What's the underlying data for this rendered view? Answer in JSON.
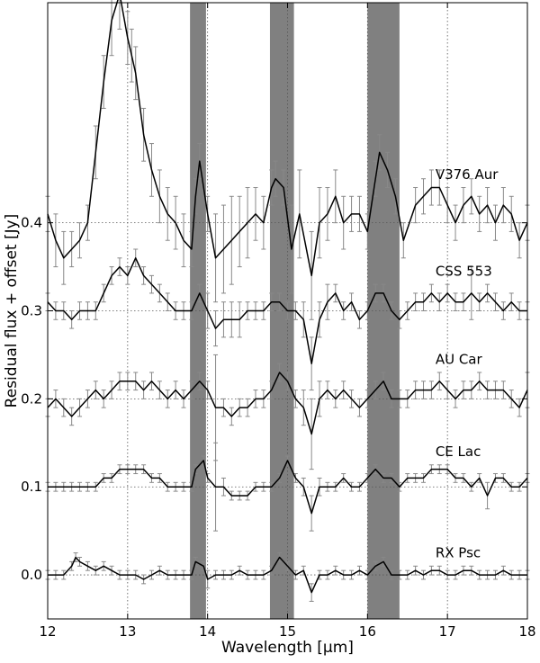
{
  "chart_data": {
    "type": "line",
    "title": "",
    "xlabel": "Wavelength [μm]",
    "ylabel": "Residual flux + offset [Jy]",
    "xlim": [
      12,
      18
    ],
    "ylim": [
      -0.05,
      0.65
    ],
    "grid": "dotted",
    "x_ticks": [
      12,
      13,
      14,
      15,
      16,
      17,
      18
    ],
    "x_tick_labels": [
      "12",
      "13",
      "14",
      "15",
      "16",
      "17",
      "18"
    ],
    "y_ticks": [
      0.0,
      0.1,
      0.2,
      0.3,
      0.4
    ],
    "y_tick_labels": [
      "0.0",
      "0.1",
      "0.2",
      "0.3",
      "0.4"
    ],
    "shaded_bands": [
      [
        13.78,
        13.98
      ],
      [
        14.78,
        15.08
      ],
      [
        16.0,
        16.4
      ]
    ],
    "colors": {
      "line": "#000000",
      "errorbar": "#888888",
      "band": "#808080",
      "grid": "#555555"
    },
    "series": [
      {
        "name": "V376 Aur",
        "label_at": [
          16.85,
          0.455
        ],
        "x": [
          12.0,
          12.1,
          12.2,
          12.3,
          12.4,
          12.5,
          12.6,
          12.7,
          12.8,
          12.9,
          13.0,
          13.05,
          13.1,
          13.2,
          13.3,
          13.4,
          13.5,
          13.6,
          13.7,
          13.8,
          13.85,
          13.9,
          14.0,
          14.1,
          14.2,
          14.3,
          14.4,
          14.5,
          14.6,
          14.7,
          14.8,
          14.85,
          14.95,
          15.05,
          15.15,
          15.3,
          15.4,
          15.5,
          15.6,
          15.7,
          15.8,
          15.9,
          16.0,
          16.1,
          16.15,
          16.25,
          16.35,
          16.45,
          16.6,
          16.7,
          16.8,
          16.9,
          17.0,
          17.1,
          17.2,
          17.3,
          17.4,
          17.5,
          17.6,
          17.7,
          17.8,
          17.9,
          18.0
        ],
        "y": [
          0.41,
          0.38,
          0.36,
          0.37,
          0.38,
          0.4,
          0.48,
          0.56,
          0.63,
          0.66,
          0.61,
          0.59,
          0.57,
          0.5,
          0.46,
          0.43,
          0.41,
          0.4,
          0.38,
          0.37,
          0.43,
          0.47,
          0.41,
          0.36,
          0.37,
          0.38,
          0.39,
          0.4,
          0.41,
          0.4,
          0.44,
          0.45,
          0.44,
          0.37,
          0.41,
          0.34,
          0.4,
          0.41,
          0.43,
          0.4,
          0.41,
          0.41,
          0.39,
          0.45,
          0.48,
          0.46,
          0.43,
          0.38,
          0.42,
          0.43,
          0.44,
          0.44,
          0.42,
          0.4,
          0.42,
          0.43,
          0.41,
          0.42,
          0.4,
          0.42,
          0.41,
          0.38,
          0.4
        ],
        "err": [
          0.02,
          0.03,
          0.03,
          0.02,
          0.02,
          0.02,
          0.03,
          0.03,
          0.04,
          0.04,
          0.03,
          0.03,
          0.03,
          0.03,
          0.03,
          0.03,
          0.03,
          0.03,
          0.03,
          0.02,
          0.02,
          0.02,
          0.02,
          0.05,
          0.05,
          0.05,
          0.04,
          0.04,
          0.03,
          0.03,
          0.02,
          0.02,
          0.02,
          0.05,
          0.05,
          0.05,
          0.04,
          0.03,
          0.03,
          0.03,
          0.02,
          0.02,
          0.02,
          0.02,
          0.02,
          0.02,
          0.02,
          0.02,
          0.02,
          0.02,
          0.02,
          0.02,
          0.02,
          0.02,
          0.02,
          0.02,
          0.02,
          0.02,
          0.02,
          0.02,
          0.02,
          0.02,
          0.02
        ]
      },
      {
        "name": "CSS 553",
        "label_at": [
          16.85,
          0.345
        ],
        "x": [
          12.0,
          12.1,
          12.2,
          12.3,
          12.4,
          12.5,
          12.6,
          12.7,
          12.8,
          12.9,
          13.0,
          13.1,
          13.2,
          13.3,
          13.4,
          13.5,
          13.6,
          13.7,
          13.8,
          13.9,
          14.0,
          14.1,
          14.2,
          14.3,
          14.4,
          14.5,
          14.6,
          14.7,
          14.8,
          14.9,
          15.0,
          15.1,
          15.2,
          15.3,
          15.4,
          15.5,
          15.6,
          15.7,
          15.8,
          15.9,
          16.0,
          16.1,
          16.2,
          16.3,
          16.4,
          16.5,
          16.6,
          16.7,
          16.8,
          16.9,
          17.0,
          17.1,
          17.2,
          17.3,
          17.4,
          17.5,
          17.6,
          17.7,
          17.8,
          17.9,
          18.0
        ],
        "y": [
          0.31,
          0.3,
          0.3,
          0.29,
          0.3,
          0.3,
          0.3,
          0.32,
          0.34,
          0.35,
          0.34,
          0.36,
          0.34,
          0.33,
          0.32,
          0.31,
          0.3,
          0.3,
          0.3,
          0.32,
          0.3,
          0.28,
          0.29,
          0.29,
          0.29,
          0.3,
          0.3,
          0.3,
          0.31,
          0.31,
          0.3,
          0.3,
          0.29,
          0.24,
          0.29,
          0.31,
          0.32,
          0.3,
          0.31,
          0.29,
          0.3,
          0.32,
          0.32,
          0.3,
          0.29,
          0.3,
          0.31,
          0.31,
          0.32,
          0.31,
          0.32,
          0.31,
          0.31,
          0.32,
          0.31,
          0.32,
          0.31,
          0.3,
          0.31,
          0.3,
          0.3
        ],
        "err": [
          0.01,
          0.01,
          0.01,
          0.01,
          0.01,
          0.01,
          0.01,
          0.01,
          0.01,
          0.01,
          0.01,
          0.01,
          0.01,
          0.01,
          0.01,
          0.01,
          0.01,
          0.01,
          0.01,
          0.01,
          0.02,
          0.02,
          0.02,
          0.02,
          0.02,
          0.01,
          0.01,
          0.01,
          0.01,
          0.01,
          0.01,
          0.01,
          0.02,
          0.03,
          0.02,
          0.02,
          0.01,
          0.01,
          0.01,
          0.01,
          0.01,
          0.01,
          0.01,
          0.01,
          0.01,
          0.01,
          0.01,
          0.01,
          0.01,
          0.01,
          0.01,
          0.01,
          0.01,
          0.03,
          0.01,
          0.01,
          0.01,
          0.01,
          0.01,
          0.01,
          0.01
        ]
      },
      {
        "name": "AU Car",
        "label_at": [
          16.85,
          0.245
        ],
        "x": [
          12.0,
          12.1,
          12.2,
          12.3,
          12.4,
          12.5,
          12.6,
          12.7,
          12.8,
          12.9,
          13.0,
          13.1,
          13.2,
          13.3,
          13.4,
          13.5,
          13.6,
          13.7,
          13.8,
          13.9,
          14.0,
          14.1,
          14.2,
          14.3,
          14.4,
          14.5,
          14.6,
          14.7,
          14.8,
          14.9,
          15.0,
          15.1,
          15.2,
          15.3,
          15.4,
          15.5,
          15.6,
          15.7,
          15.8,
          15.9,
          16.0,
          16.1,
          16.2,
          16.3,
          16.4,
          16.5,
          16.6,
          16.7,
          16.8,
          16.9,
          17.0,
          17.1,
          17.2,
          17.3,
          17.4,
          17.5,
          17.6,
          17.7,
          17.8,
          17.9,
          18.0
        ],
        "y": [
          0.19,
          0.2,
          0.19,
          0.18,
          0.19,
          0.2,
          0.21,
          0.2,
          0.21,
          0.22,
          0.22,
          0.22,
          0.21,
          0.22,
          0.21,
          0.2,
          0.21,
          0.2,
          0.21,
          0.22,
          0.21,
          0.19,
          0.19,
          0.18,
          0.19,
          0.19,
          0.2,
          0.2,
          0.21,
          0.23,
          0.22,
          0.2,
          0.19,
          0.16,
          0.2,
          0.21,
          0.2,
          0.21,
          0.2,
          0.19,
          0.2,
          0.21,
          0.22,
          0.2,
          0.2,
          0.2,
          0.21,
          0.21,
          0.21,
          0.22,
          0.21,
          0.2,
          0.21,
          0.21,
          0.22,
          0.21,
          0.21,
          0.21,
          0.2,
          0.19,
          0.21
        ],
        "err": [
          0.01,
          0.01,
          0.01,
          0.01,
          0.01,
          0.01,
          0.01,
          0.01,
          0.01,
          0.01,
          0.01,
          0.01,
          0.01,
          0.01,
          0.01,
          0.01,
          0.01,
          0.01,
          0.01,
          0.01,
          0.01,
          0.06,
          0.01,
          0.01,
          0.01,
          0.01,
          0.01,
          0.01,
          0.01,
          0.01,
          0.01,
          0.01,
          0.02,
          0.04,
          0.02,
          0.01,
          0.01,
          0.01,
          0.01,
          0.01,
          0.01,
          0.01,
          0.01,
          0.01,
          0.01,
          0.01,
          0.01,
          0.01,
          0.01,
          0.01,
          0.01,
          0.01,
          0.01,
          0.01,
          0.01,
          0.01,
          0.01,
          0.01,
          0.01,
          0.01,
          0.02
        ]
      },
      {
        "name": "CE Lac",
        "label_at": [
          16.85,
          0.14
        ],
        "x": [
          12.0,
          12.1,
          12.2,
          12.3,
          12.4,
          12.5,
          12.6,
          12.7,
          12.8,
          12.9,
          13.0,
          13.1,
          13.2,
          13.3,
          13.4,
          13.5,
          13.6,
          13.7,
          13.8,
          13.85,
          13.95,
          14.0,
          14.1,
          14.2,
          14.3,
          14.4,
          14.5,
          14.6,
          14.7,
          14.8,
          14.9,
          15.0,
          15.1,
          15.2,
          15.3,
          15.4,
          15.5,
          15.6,
          15.7,
          15.8,
          15.9,
          16.0,
          16.1,
          16.2,
          16.3,
          16.4,
          16.5,
          16.6,
          16.7,
          16.8,
          16.9,
          17.0,
          17.1,
          17.2,
          17.3,
          17.4,
          17.5,
          17.6,
          17.7,
          17.8,
          17.9,
          18.0
        ],
        "y": [
          0.1,
          0.1,
          0.1,
          0.1,
          0.1,
          0.1,
          0.1,
          0.11,
          0.11,
          0.12,
          0.12,
          0.12,
          0.12,
          0.11,
          0.11,
          0.1,
          0.1,
          0.1,
          0.1,
          0.12,
          0.13,
          0.11,
          0.1,
          0.1,
          0.09,
          0.09,
          0.09,
          0.1,
          0.1,
          0.1,
          0.11,
          0.13,
          0.11,
          0.1,
          0.07,
          0.1,
          0.1,
          0.1,
          0.11,
          0.1,
          0.1,
          0.11,
          0.12,
          0.11,
          0.11,
          0.1,
          0.11,
          0.11,
          0.11,
          0.12,
          0.12,
          0.12,
          0.11,
          0.11,
          0.1,
          0.11,
          0.09,
          0.11,
          0.11,
          0.1,
          0.1,
          0.11
        ],
        "err": [
          0.005,
          0.005,
          0.005,
          0.005,
          0.005,
          0.005,
          0.005,
          0.005,
          0.005,
          0.005,
          0.005,
          0.005,
          0.005,
          0.005,
          0.005,
          0.005,
          0.005,
          0.005,
          0.005,
          0.005,
          0.005,
          0.005,
          0.05,
          0.01,
          0.005,
          0.005,
          0.005,
          0.005,
          0.005,
          0.005,
          0.005,
          0.005,
          0.005,
          0.01,
          0.02,
          0.01,
          0.005,
          0.005,
          0.005,
          0.005,
          0.005,
          0.005,
          0.005,
          0.005,
          0.005,
          0.005,
          0.005,
          0.005,
          0.005,
          0.005,
          0.005,
          0.005,
          0.005,
          0.005,
          0.005,
          0.005,
          0.015,
          0.005,
          0.005,
          0.005,
          0.005,
          0.005
        ]
      },
      {
        "name": "RX Psc",
        "label_at": [
          16.85,
          0.025
        ],
        "x": [
          12.0,
          12.1,
          12.2,
          12.3,
          12.35,
          12.4,
          12.5,
          12.6,
          12.7,
          12.8,
          12.9,
          13.0,
          13.1,
          13.2,
          13.3,
          13.4,
          13.5,
          13.6,
          13.7,
          13.8,
          13.85,
          13.95,
          14.0,
          14.1,
          14.2,
          14.3,
          14.4,
          14.5,
          14.6,
          14.7,
          14.8,
          14.9,
          15.0,
          15.1,
          15.2,
          15.3,
          15.4,
          15.5,
          15.6,
          15.7,
          15.8,
          15.9,
          16.0,
          16.1,
          16.2,
          16.3,
          16.4,
          16.5,
          16.6,
          16.7,
          16.8,
          16.9,
          17.0,
          17.1,
          17.2,
          17.3,
          17.4,
          17.5,
          17.6,
          17.7,
          17.8,
          17.9,
          18.0
        ],
        "y": [
          0.0,
          0.0,
          0.0,
          0.01,
          0.02,
          0.015,
          0.01,
          0.005,
          0.01,
          0.005,
          0.0,
          0.0,
          0.0,
          -0.005,
          0.0,
          0.005,
          0.0,
          0.0,
          0.0,
          0.0,
          0.015,
          0.01,
          -0.005,
          0.0,
          0.0,
          0.0,
          0.005,
          0.0,
          0.0,
          0.0,
          0.005,
          0.02,
          0.01,
          0.0,
          0.005,
          -0.02,
          0.0,
          0.0,
          0.005,
          0.0,
          0.0,
          0.005,
          0.0,
          0.01,
          0.015,
          0.0,
          0.0,
          0.0,
          0.005,
          0.0,
          0.005,
          0.005,
          0.0,
          0.0,
          0.005,
          0.005,
          0.0,
          0.0,
          0.0,
          0.005,
          0.0,
          0.0,
          0.0
        ],
        "err": [
          0.005,
          0.005,
          0.005,
          0.005,
          0.005,
          0.005,
          0.005,
          0.005,
          0.005,
          0.005,
          0.005,
          0.005,
          0.005,
          0.005,
          0.005,
          0.005,
          0.005,
          0.005,
          0.005,
          0.005,
          0.005,
          0.005,
          0.01,
          0.005,
          0.005,
          0.005,
          0.005,
          0.005,
          0.005,
          0.005,
          0.005,
          0.005,
          0.005,
          0.005,
          0.005,
          0.01,
          0.005,
          0.005,
          0.005,
          0.005,
          0.005,
          0.005,
          0.005,
          0.005,
          0.005,
          0.005,
          0.005,
          0.005,
          0.005,
          0.005,
          0.005,
          0.005,
          0.005,
          0.005,
          0.005,
          0.005,
          0.005,
          0.005,
          0.005,
          0.005,
          0.005,
          0.005,
          0.005
        ]
      }
    ]
  }
}
